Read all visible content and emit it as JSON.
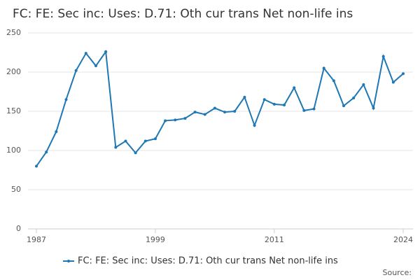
{
  "chart_data": {
    "type": "line",
    "title": "FC: FE: Sec inc: Uses: D.71: Oth cur trans Net non-life ins",
    "x": [
      1987,
      1988,
      1989,
      1990,
      1991,
      1992,
      1993,
      1994,
      1995,
      1996,
      1997,
      1998,
      1999,
      2000,
      2001,
      2002,
      2003,
      2004,
      2005,
      2006,
      2007,
      2008,
      2009,
      2010,
      2011,
      2012,
      2013,
      2014,
      2015,
      2016,
      2017,
      2018,
      2019,
      2020,
      2021,
      2022,
      2023,
      2024
    ],
    "series": [
      {
        "name": "FC: FE: Sec inc: Uses: D.71: Oth cur trans Net non-life ins",
        "color": "#1f78b4",
        "values": [
          80,
          98,
          124,
          165,
          202,
          224,
          208,
          226,
          104,
          112,
          97,
          112,
          115,
          138,
          139,
          141,
          149,
          146,
          154,
          149,
          150,
          168,
          132,
          165,
          159,
          158,
          180,
          151,
          153,
          205,
          189,
          157,
          167,
          184,
          154,
          220,
          187,
          198
        ]
      }
    ],
    "xlim": [
      1987,
      2024
    ],
    "xticks": [
      1987,
      1999,
      2011,
      2024
    ],
    "ylim": [
      0,
      250
    ],
    "yticks": [
      0,
      50,
      100,
      150,
      200,
      250
    ],
    "grid": true,
    "legend": "bottom",
    "source": "Source:"
  }
}
